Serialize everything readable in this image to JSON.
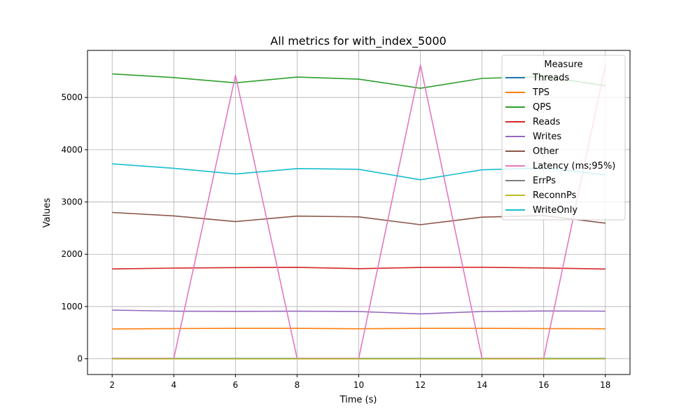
{
  "chart_data": {
    "type": "line",
    "title": "All metrics for with_index_5000",
    "xlabel": "Time (s)",
    "ylabel": "Values",
    "x": [
      2,
      4,
      6,
      8,
      10,
      12,
      14,
      16,
      18
    ],
    "xlim": [
      1.2,
      18.8
    ],
    "ylim": [
      -300,
      5900
    ],
    "xticks": [
      2,
      4,
      6,
      8,
      10,
      12,
      14,
      16,
      18
    ],
    "yticks": [
      0,
      1000,
      2000,
      3000,
      4000,
      5000
    ],
    "grid": true,
    "legend": {
      "title": "Measure",
      "position": "top-right"
    },
    "series": [
      {
        "name": "Threads",
        "color": "#1f77b4",
        "values": [
          8,
          8,
          8,
          8,
          8,
          8,
          8,
          8,
          8
        ]
      },
      {
        "name": "TPS",
        "color": "#ff7f0e",
        "values": [
          572,
          578,
          583,
          582,
          575,
          583,
          582,
          578,
          575
        ]
      },
      {
        "name": "QPS",
        "color": "#2ca02c",
        "values": [
          5450,
          5380,
          5280,
          5390,
          5350,
          5175,
          5365,
          5400,
          5225
        ]
      },
      {
        "name": "Reads",
        "color": "#d62728",
        "values": [
          1720,
          1735,
          1745,
          1750,
          1725,
          1748,
          1752,
          1738,
          1718
        ]
      },
      {
        "name": "Writes",
        "color": "#9467bd",
        "values": [
          932,
          912,
          908,
          910,
          905,
          860,
          905,
          915,
          912
        ]
      },
      {
        "name": "Other",
        "color": "#8c564b",
        "values": [
          2800,
          2735,
          2625,
          2730,
          2715,
          2565,
          2710,
          2740,
          2595
        ]
      },
      {
        "name": "Latency (ms;95%)",
        "color": "#e377c2",
        "values": [
          10,
          10,
          5420,
          10,
          10,
          5620,
          10,
          10,
          5620
        ]
      },
      {
        "name": "ErrPs",
        "color": "#7f7f7f",
        "values": [
          0,
          0,
          0,
          0,
          0,
          0,
          0,
          0,
          0
        ]
      },
      {
        "name": "ReconnPs",
        "color": "#bcbd22",
        "values": [
          0,
          0,
          0,
          0,
          0,
          0,
          0,
          0,
          0
        ]
      },
      {
        "name": "WriteOnly",
        "color": "#17becf",
        "values": [
          3730,
          3645,
          3535,
          3640,
          3625,
          3425,
          3615,
          3650,
          3520
        ]
      }
    ]
  }
}
